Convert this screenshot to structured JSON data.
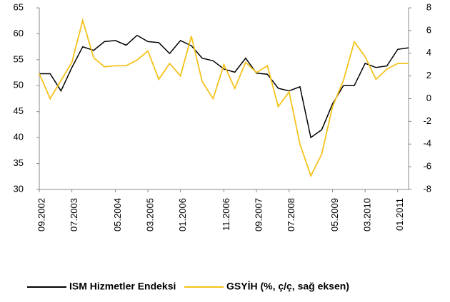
{
  "chart_data": {
    "type": "line",
    "categories": [
      "09.2002",
      null,
      null,
      "07.2003",
      null,
      null,
      null,
      "05.2004",
      null,
      null,
      "03.2005",
      null,
      null,
      "01.2006",
      null,
      null,
      null,
      "11.2006",
      null,
      null,
      "09.2007",
      null,
      null,
      "07.2008",
      null,
      null,
      null,
      "05.2009",
      null,
      null,
      "03.2010",
      null,
      null,
      "01.2011",
      null
    ],
    "series": [
      {
        "name": "ISM Hizmetler Endeksi",
        "color": "#000000",
        "values": [
          52.3,
          52.3,
          49,
          53.5,
          57.5,
          56.8,
          58.5,
          58.7,
          57.8,
          59.7,
          58.5,
          58.3,
          56.2,
          58.7,
          57.7,
          55.3,
          54.8,
          53.2,
          52.6,
          55.3,
          52.4,
          52.2,
          49.5,
          49,
          49.8,
          40,
          41.5,
          46.5,
          50,
          50,
          54.3,
          53.5,
          53.8,
          57,
          57.3
        ]
      },
      {
        "name": "GSYİH (%, ç/ç, sağ eksen)",
        "color": "#f5c21b",
        "axis": "y2",
        "values": [
          2.2,
          0,
          1.6,
          3.2,
          6.9,
          3.6,
          2.8,
          2.9,
          2.9,
          3.4,
          4.2,
          1.7,
          3.1,
          2,
          5.5,
          1.5,
          0,
          3,
          0.9,
          3.2,
          2.3,
          2.9,
          -0.7,
          0.6,
          -4,
          -6.8,
          -4.9,
          -0.7,
          1.6,
          5,
          3.7,
          1.7,
          2.6,
          3.1,
          3.1
        ]
      }
    ],
    "ylim": [
      30,
      65
    ],
    "yticks": [
      30,
      35,
      40,
      45,
      50,
      55,
      60,
      65
    ],
    "y2lim": [
      -8,
      8
    ],
    "y2ticks": [
      -8,
      -6,
      -4,
      -2,
      0,
      2,
      4,
      6,
      8
    ],
    "legend": "bottom"
  }
}
